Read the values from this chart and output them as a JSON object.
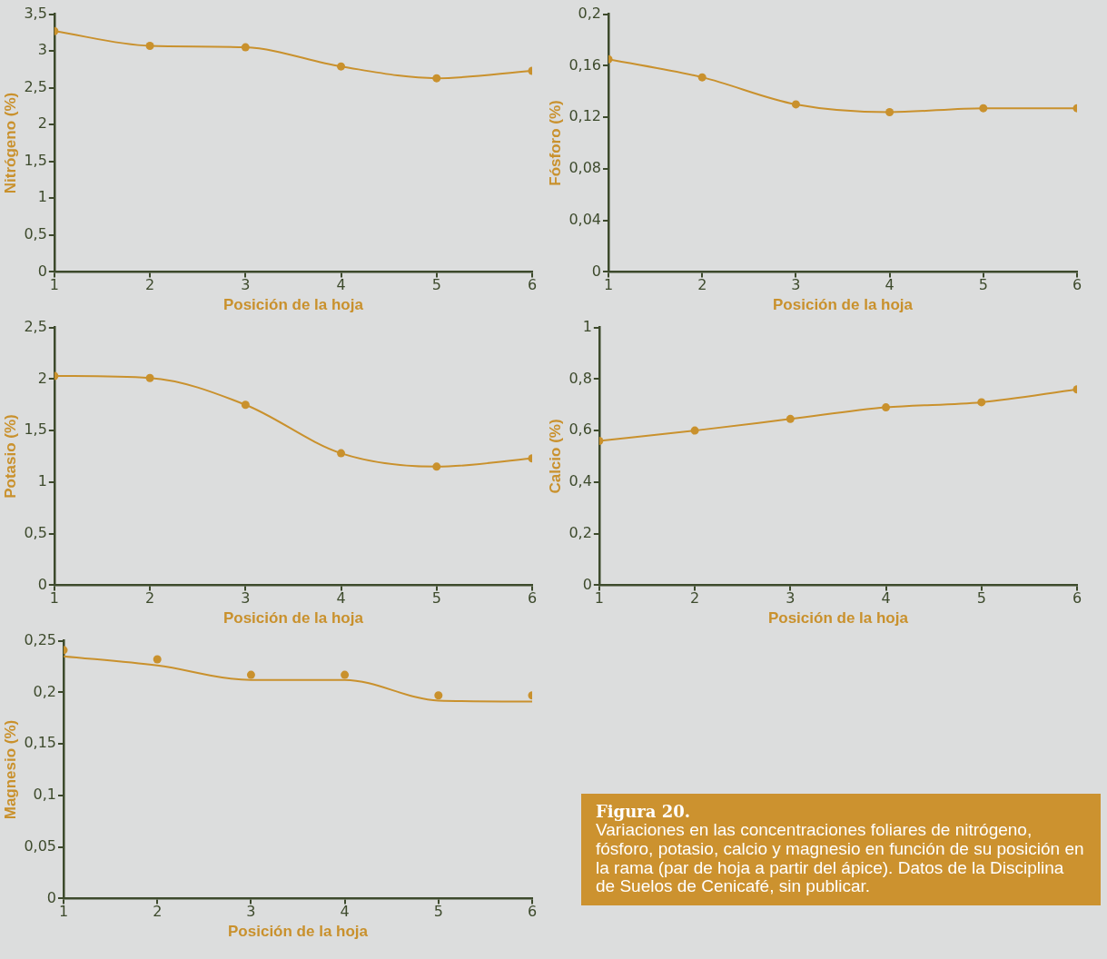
{
  "chart_data": [
    {
      "type": "line",
      "xlabel": "Posición de la hoja",
      "ylabel": "Nitrógeno (%)",
      "x": [
        1,
        2,
        3,
        4,
        5,
        6
      ],
      "xlim": [
        1,
        6
      ],
      "xticks": [
        1,
        2,
        3,
        4,
        5,
        6
      ],
      "ylim": [
        0,
        3.5
      ],
      "yticks": [
        0,
        {
          "value": 0.5,
          "label": "0,5"
        },
        1,
        {
          "value": 1.5,
          "label": "1,5"
        },
        2,
        {
          "value": 2.5,
          "label": "2,5"
        },
        3,
        {
          "value": 3.5,
          "label": "3,5"
        }
      ],
      "grid": false,
      "legend": false,
      "marker": "circle",
      "series": [
        {
          "color": "#c9912d",
          "values": [
            3.27,
            3.07,
            3.05,
            2.79,
            2.63,
            2.73
          ]
        }
      ]
    },
    {
      "type": "line",
      "xlabel": "Posición de la hoja",
      "ylabel": "Fósforo (%)",
      "x": [
        1,
        2,
        3,
        4,
        5,
        6
      ],
      "xlim": [
        1,
        6
      ],
      "xticks": [
        1,
        2,
        3,
        4,
        5,
        6
      ],
      "ylim": [
        0,
        0.2
      ],
      "yticks": [
        0,
        {
          "value": 0.04,
          "label": "0,04"
        },
        {
          "value": 0.08,
          "label": "0,08"
        },
        {
          "value": 0.12,
          "label": "0,12"
        },
        {
          "value": 0.16,
          "label": "0,16"
        },
        {
          "value": 0.2,
          "label": "0,2"
        }
      ],
      "grid": false,
      "legend": false,
      "marker": "circle",
      "series": [
        {
          "color": "#c9912d",
          "values": [
            0.165,
            0.151,
            0.13,
            0.124,
            0.127,
            0.127
          ]
        }
      ]
    },
    {
      "type": "line",
      "xlabel": "Posición de la hoja",
      "ylabel": "Potasio (%)",
      "x": [
        1,
        2,
        3,
        4,
        5,
        6
      ],
      "xlim": [
        1,
        6
      ],
      "xticks": [
        1,
        2,
        3,
        4,
        5,
        6
      ],
      "ylim": [
        0,
        2.5
      ],
      "yticks": [
        0,
        {
          "value": 0.5,
          "label": "0,5"
        },
        1,
        {
          "value": 1.5,
          "label": "1,5"
        },
        2,
        {
          "value": 2.5,
          "label": "2,5"
        }
      ],
      "grid": false,
      "legend": false,
      "marker": "circle",
      "series": [
        {
          "color": "#c9912d",
          "values": [
            2.03,
            2.01,
            1.75,
            1.28,
            1.15,
            1.23
          ]
        }
      ]
    },
    {
      "type": "line",
      "xlabel": "Posición de la hoja",
      "ylabel": "Calcio (%)",
      "x": [
        1,
        2,
        3,
        4,
        5,
        6
      ],
      "xlim": [
        1,
        6
      ],
      "xticks": [
        1,
        2,
        3,
        4,
        5,
        6
      ],
      "ylim": [
        0,
        1
      ],
      "yticks": [
        0,
        {
          "value": 0.2,
          "label": "0,2"
        },
        {
          "value": 0.4,
          "label": "0,4"
        },
        {
          "value": 0.6,
          "label": "0,6"
        },
        {
          "value": 0.8,
          "label": "0,8"
        },
        1
      ],
      "grid": false,
      "legend": false,
      "marker": "circle",
      "series": [
        {
          "color": "#c9912d",
          "values": [
            0.56,
            0.6,
            0.645,
            0.69,
            0.71,
            0.76
          ]
        }
      ]
    },
    {
      "type": "line",
      "xlabel": "Posición de la hoja",
      "ylabel": "Magnesio (%)",
      "x": [
        1,
        2,
        3,
        4,
        5,
        6
      ],
      "xlim": [
        1,
        6
      ],
      "xticks": [
        1,
        2,
        3,
        4,
        5,
        6
      ],
      "ylim": [
        0,
        0.25
      ],
      "yticks": [
        0,
        {
          "value": 0.05,
          "label": "0,05"
        },
        {
          "value": 0.1,
          "label": "0,1"
        },
        {
          "value": 0.15,
          "label": "0,15"
        },
        {
          "value": 0.2,
          "label": "0,2"
        },
        {
          "value": 0.25,
          "label": "0,25"
        }
      ],
      "grid": false,
      "legend": false,
      "series": [
        {
          "type": "scatter",
          "marker": "circle",
          "color": "#c9912d",
          "values": [
            0.241,
            0.232,
            0.217,
            0.217,
            0.197,
            0.197
          ]
        },
        {
          "type": "line",
          "marker": "none",
          "color": "#c9912d",
          "values": [
            0.235,
            0.226,
            0.212,
            0.212,
            0.192,
            0.191
          ]
        }
      ]
    },
    {
      "type": "other",
      "title": "Figura 20.",
      "annotations": [
        "Variaciones en las concentraciones foliares de nitrógeno, fósforo, potasio, calcio y magnesio en función de su posición en la rama (par de hoja a partir del ápice). Datos de la Disciplina de Suelos de Cenicafé, sin publicar."
      ]
    }
  ]
}
